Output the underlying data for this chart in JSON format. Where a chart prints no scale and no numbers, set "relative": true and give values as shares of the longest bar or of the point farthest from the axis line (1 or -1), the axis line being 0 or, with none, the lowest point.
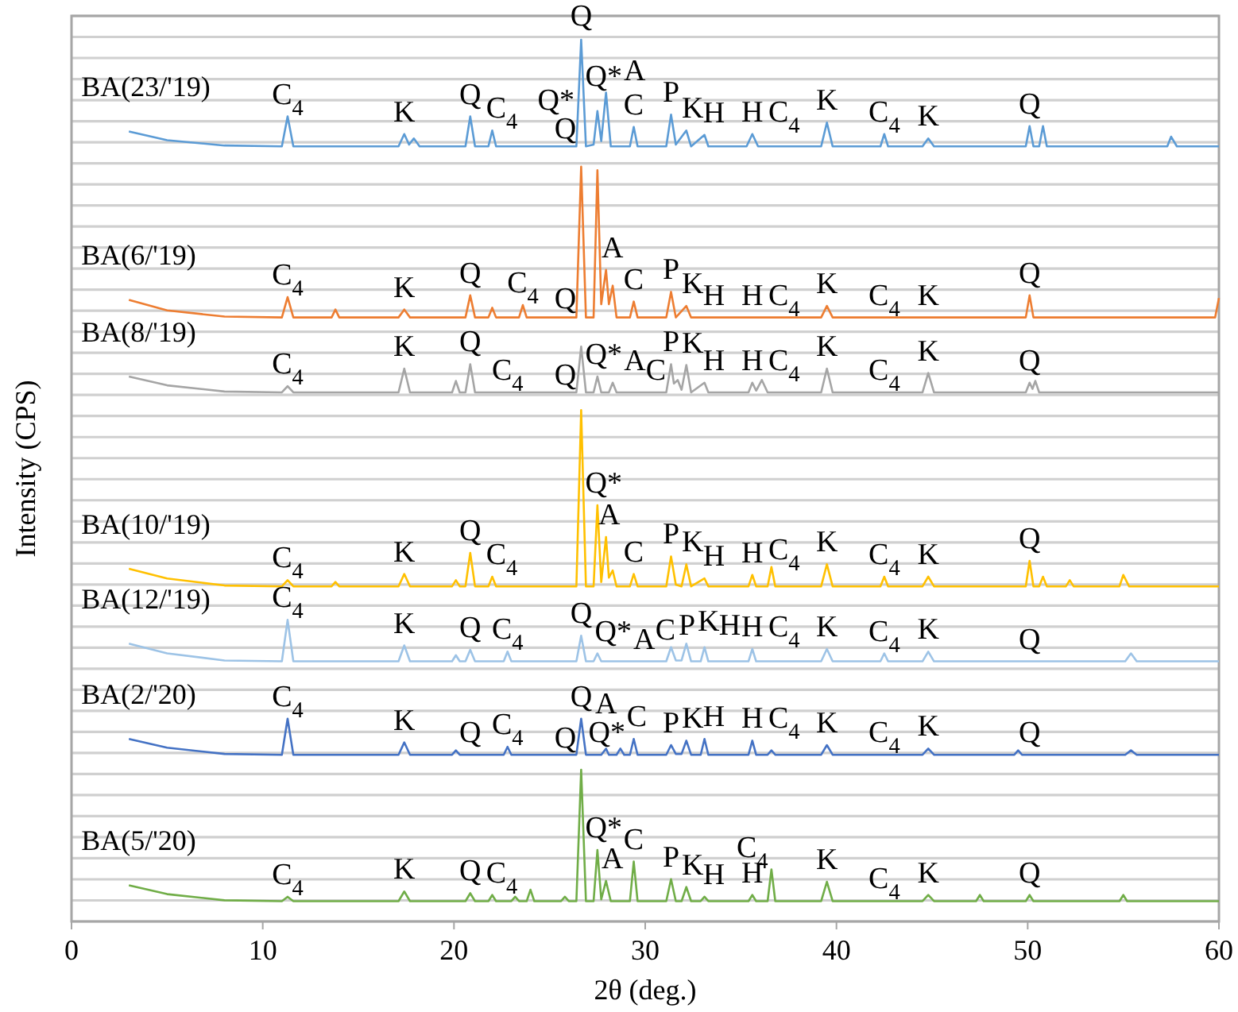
{
  "chart_data": {
    "type": "line",
    "relative": true,
    "xlabel": "2θ (deg.)",
    "ylabel": "Intensity (CPS)",
    "xlim": [
      0,
      60
    ],
    "xticks": [
      0,
      10,
      20,
      30,
      40,
      50,
      60
    ],
    "grid": "y",
    "legend": false,
    "tick_labels": "x",
    "marker": "none",
    "line_style": "solid",
    "series": [
      {
        "name": "BA(23/'19)",
        "color": "#5b9bd5",
        "x": [
          3,
          5,
          8,
          11.0,
          11.3,
          11.6,
          17.1,
          17.4,
          17.65,
          17.9,
          18.2,
          20.6,
          20.85,
          21.1,
          21.8,
          22,
          22.2,
          26.4,
          26.65,
          26.9,
          27.3,
          27.5,
          27.7,
          27.95,
          28.2,
          29.2,
          29.4,
          29.6,
          31.1,
          31.35,
          31.6,
          32.15,
          32.4,
          33.1,
          33.3,
          35.3,
          35.6,
          35.9,
          39.2,
          39.5,
          39.8,
          42.3,
          42.5,
          42.7,
          44.5,
          44.8,
          45.1,
          49.9,
          50.1,
          50.3,
          50.6,
          50.8,
          51.0,
          57.3,
          57.5,
          57.8,
          60
        ],
        "values": [
          0.896,
          0.886,
          0.88,
          0.879,
          0.913,
          0.879,
          0.879,
          0.893,
          0.881,
          0.888,
          0.879,
          0.879,
          0.913,
          0.879,
          0.879,
          0.897,
          0.879,
          0.879,
          1,
          0.879,
          0.881,
          0.919,
          0.885,
          0.94,
          0.879,
          0.879,
          0.901,
          0.879,
          0.879,
          0.915,
          0.881,
          0.897,
          0.879,
          0.892,
          0.879,
          0.879,
          0.893,
          0.879,
          0.879,
          0.906,
          0.879,
          0.879,
          0.893,
          0.879,
          0.879,
          0.888,
          0.879,
          0.879,
          0.902,
          0.879,
          0.879,
          0.902,
          0.879,
          0.879,
          0.89,
          0.879,
          0.879
        ]
      },
      {
        "name": "BA(6/'19)",
        "color": "#ed7d31",
        "x": [
          3,
          5,
          8,
          11.0,
          11.3,
          11.6,
          13.6,
          13.8,
          14.0,
          17.1,
          17.4,
          17.7,
          20.6,
          20.85,
          21.1,
          21.8,
          22,
          22.2,
          23.4,
          23.6,
          23.8,
          26.4,
          26.65,
          26.9,
          27.3,
          27.5,
          27.7,
          27.95,
          28.1,
          28.3,
          28.5,
          29.2,
          29.4,
          29.6,
          31.1,
          31.35,
          31.6,
          32.15,
          32.4,
          39.2,
          39.5,
          39.8,
          49.9,
          50.1,
          50.3,
          59.8,
          60
        ],
        "values": [
          0.705,
          0.693,
          0.686,
          0.685,
          0.708,
          0.685,
          0.685,
          0.694,
          0.685,
          0.685,
          0.694,
          0.685,
          0.685,
          0.71,
          0.685,
          0.685,
          0.696,
          0.685,
          0.685,
          0.699,
          0.685,
          0.685,
          0.856,
          0.685,
          0.685,
          0.852,
          0.7,
          0.739,
          0.7,
          0.721,
          0.685,
          0.685,
          0.703,
          0.685,
          0.685,
          0.714,
          0.685,
          0.698,
          0.685,
          0.685,
          0.698,
          0.685,
          0.685,
          0.71,
          0.685,
          0.685,
          0.707
        ]
      },
      {
        "name": "BA(8/'19)",
        "color": "#a5a5a5",
        "x": [
          3,
          5,
          8,
          11.0,
          11.3,
          11.6,
          17.1,
          17.4,
          17.7,
          19.9,
          20.1,
          20.3,
          20.6,
          20.85,
          21.1,
          26.4,
          26.65,
          26.9,
          27.3,
          27.5,
          27.7,
          28.1,
          28.3,
          28.5,
          31.1,
          31.35,
          31.5,
          31.7,
          31.9,
          32.15,
          32.4,
          33.1,
          33.3,
          35.4,
          35.6,
          35.8,
          36.1,
          36.4,
          39.2,
          39.5,
          39.8,
          44.5,
          44.8,
          45.1,
          49.9,
          50.1,
          50.25,
          50.4,
          50.6,
          60
        ],
        "values": [
          0.618,
          0.608,
          0.601,
          0.6,
          0.607,
          0.6,
          0.6,
          0.627,
          0.6,
          0.6,
          0.613,
          0.6,
          0.6,
          0.632,
          0.6,
          0.6,
          0.652,
          0.6,
          0.6,
          0.618,
          0.6,
          0.6,
          0.611,
          0.6,
          0.6,
          0.632,
          0.61,
          0.614,
          0.603,
          0.631,
          0.6,
          0.611,
          0.6,
          0.6,
          0.611,
          0.602,
          0.614,
          0.6,
          0.6,
          0.627,
          0.6,
          0.6,
          0.622,
          0.6,
          0.6,
          0.611,
          0.604,
          0.613,
          0.6,
          0.6
        ]
      },
      {
        "name": "BA(10/'19)",
        "color": "#ffc000",
        "x": [
          3,
          5,
          8,
          11.0,
          11.3,
          11.6,
          13.6,
          13.8,
          14.0,
          17.1,
          17.4,
          17.7,
          19.9,
          20.1,
          20.3,
          20.6,
          20.85,
          21.1,
          21.8,
          22,
          22.2,
          26.4,
          26.65,
          26.9,
          27.3,
          27.5,
          27.7,
          27.95,
          28.1,
          28.3,
          28.5,
          29.2,
          29.4,
          29.6,
          31.1,
          31.35,
          31.6,
          31.9,
          32.15,
          32.4,
          33.1,
          33.3,
          35.4,
          35.6,
          35.8,
          36.4,
          36.6,
          36.8,
          39.2,
          39.5,
          39.8,
          42.3,
          42.5,
          42.7,
          44.5,
          44.8,
          45.1,
          49.9,
          50.1,
          50.3,
          50.6,
          50.8,
          51.0,
          52.0,
          52.2,
          52.4,
          54.8,
          55,
          55.3,
          60
        ],
        "values": [
          0.4,
          0.389,
          0.381,
          0.38,
          0.387,
          0.38,
          0.38,
          0.385,
          0.38,
          0.38,
          0.394,
          0.38,
          0.38,
          0.387,
          0.38,
          0.38,
          0.418,
          0.38,
          0.38,
          0.391,
          0.38,
          0.38,
          0.58,
          0.38,
          0.38,
          0.472,
          0.385,
          0.436,
          0.39,
          0.398,
          0.38,
          0.38,
          0.394,
          0.38,
          0.38,
          0.414,
          0.382,
          0.38,
          0.405,
          0.38,
          0.389,
          0.38,
          0.38,
          0.393,
          0.38,
          0.38,
          0.402,
          0.38,
          0.38,
          0.405,
          0.38,
          0.38,
          0.391,
          0.38,
          0.38,
          0.391,
          0.38,
          0.38,
          0.409,
          0.38,
          0.38,
          0.391,
          0.38,
          0.38,
          0.387,
          0.38,
          0.38,
          0.393,
          0.38,
          0.38
        ]
      },
      {
        "name": "BA(12/'19)",
        "color": "#9dc3e6",
        "x": [
          3,
          5,
          8,
          11.0,
          11.3,
          11.6,
          17.1,
          17.4,
          17.7,
          19.9,
          20.1,
          20.3,
          20.6,
          20.85,
          21.1,
          22.6,
          22.8,
          23.0,
          26.4,
          26.65,
          26.9,
          27.3,
          27.5,
          27.7,
          31.1,
          31.35,
          31.6,
          31.9,
          32.15,
          32.4,
          32.9,
          33.1,
          33.3,
          35.4,
          35.6,
          35.8,
          39.2,
          39.5,
          39.8,
          42.3,
          42.5,
          42.7,
          44.5,
          44.8,
          45.1,
          55.1,
          55.4,
          55.7,
          60
        ],
        "values": [
          0.315,
          0.304,
          0.296,
          0.295,
          0.342,
          0.295,
          0.295,
          0.313,
          0.295,
          0.295,
          0.302,
          0.295,
          0.295,
          0.308,
          0.295,
          0.295,
          0.306,
          0.295,
          0.295,
          0.324,
          0.295,
          0.295,
          0.304,
          0.295,
          0.295,
          0.311,
          0.296,
          0.296,
          0.315,
          0.295,
          0.295,
          0.311,
          0.295,
          0.295,
          0.309,
          0.295,
          0.295,
          0.309,
          0.295,
          0.295,
          0.304,
          0.295,
          0.295,
          0.306,
          0.295,
          0.295,
          0.304,
          0.295,
          0.295
        ]
      },
      {
        "name": "BA(2/'20)",
        "color": "#4472c4",
        "x": [
          3,
          5,
          8,
          11.0,
          11.3,
          11.6,
          17.1,
          17.4,
          17.7,
          19.9,
          20.1,
          20.3,
          22.6,
          22.8,
          23.0,
          26.4,
          26.65,
          26.9,
          27.7,
          27.95,
          28.1,
          28.5,
          28.7,
          28.9,
          29.2,
          29.4,
          29.6,
          31.1,
          31.35,
          31.6,
          31.9,
          32.15,
          32.4,
          32.9,
          33.1,
          33.3,
          35.4,
          35.6,
          35.8,
          36.4,
          36.6,
          36.8,
          39.2,
          39.5,
          39.8,
          44.5,
          44.8,
          45.1,
          49.3,
          49.5,
          49.7,
          55.1,
          55.4,
          55.7,
          60
        ],
        "values": [
          0.207,
          0.197,
          0.19,
          0.189,
          0.23,
          0.189,
          0.189,
          0.203,
          0.189,
          0.189,
          0.194,
          0.189,
          0.189,
          0.198,
          0.189,
          0.189,
          0.23,
          0.189,
          0.189,
          0.196,
          0.189,
          0.189,
          0.196,
          0.189,
          0.189,
          0.207,
          0.189,
          0.189,
          0.2,
          0.19,
          0.19,
          0.205,
          0.189,
          0.189,
          0.207,
          0.189,
          0.189,
          0.205,
          0.189,
          0.189,
          0.194,
          0.189,
          0.189,
          0.2,
          0.189,
          0.189,
          0.196,
          0.189,
          0.189,
          0.194,
          0.189,
          0.189,
          0.194,
          0.189,
          0.189
        ]
      },
      {
        "name": "BA(5/'20)",
        "color": "#70ad47",
        "x": [
          3,
          5,
          8,
          11.0,
          11.3,
          11.6,
          17.1,
          17.4,
          17.7,
          20.6,
          20.85,
          21.1,
          21.8,
          22,
          22.2,
          23.0,
          23.2,
          23.4,
          23.8,
          24,
          24.2,
          25.6,
          25.8,
          26.0,
          26.4,
          26.65,
          26.9,
          27.3,
          27.5,
          27.7,
          27.95,
          28.2,
          29.2,
          29.4,
          29.6,
          31.1,
          31.35,
          31.6,
          31.9,
          32.15,
          32.4,
          32.9,
          33.1,
          33.3,
          35.4,
          35.6,
          35.8,
          36.4,
          36.6,
          36.8,
          39.2,
          39.5,
          39.8,
          44.5,
          44.8,
          45.1,
          47.3,
          47.5,
          47.7,
          49.9,
          50.1,
          50.3,
          54.8,
          55,
          55.2,
          60
        ],
        "values": [
          0.041,
          0.031,
          0.024,
          0.023,
          0.028,
          0.023,
          0.023,
          0.034,
          0.023,
          0.023,
          0.032,
          0.023,
          0.023,
          0.03,
          0.023,
          0.023,
          0.028,
          0.023,
          0.023,
          0.036,
          0.023,
          0.023,
          0.028,
          0.023,
          0.023,
          0.172,
          0.023,
          0.023,
          0.081,
          0.025,
          0.046,
          0.023,
          0.023,
          0.068,
          0.023,
          0.023,
          0.048,
          0.023,
          0.023,
          0.039,
          0.023,
          0.023,
          0.028,
          0.023,
          0.023,
          0.03,
          0.023,
          0.023,
          0.059,
          0.023,
          0.023,
          0.045,
          0.023,
          0.023,
          0.03,
          0.023,
          0.023,
          0.03,
          0.023,
          0.023,
          0.03,
          0.023,
          0.023,
          0.03,
          0.023,
          0.023
        ]
      }
    ],
    "annotations": [
      {
        "text": "C$_{4}$",
        "x": 11.3,
        "y": 0.913
      },
      {
        "text": "K",
        "x": 17.4,
        "y": 0.893
      },
      {
        "text": "Q",
        "x": 20.85,
        "y": 0.913
      },
      {
        "text": "C$_{4}$",
        "x": 22,
        "y": 0.897
      },
      {
        "text": "Q",
        "x": 26.65,
        "y": 1
      },
      {
        "text": "Q*",
        "x": 27.5,
        "y": 0.919
      },
      {
        "text": "A",
        "x": 27.95,
        "y": 0.94
      },
      {
        "text": "C",
        "x": 29.4,
        "y": 0.901
      },
      {
        "text": "P",
        "x": 31.35,
        "y": 0.915
      },
      {
        "text": "K",
        "x": 32.15,
        "y": 0.897
      },
      {
        "text": "H",
        "x": 33.1,
        "y": 0.892
      },
      {
        "text": "H",
        "x": 35.6,
        "y": 0.893
      },
      {
        "text": "C$_{4}$",
        "x": 35.6,
        "y": 0.893
      },
      {
        "text": "K",
        "x": 39.5,
        "y": 0.906
      },
      {
        "text": "C$_{4}$",
        "x": 42.5,
        "y": 0.893
      },
      {
        "text": "K",
        "x": 44.8,
        "y": 0.888
      },
      {
        "text": "Q",
        "x": 50.1,
        "y": 0.902
      },
      {
        "text": "C$_{4}$",
        "x": 11.3,
        "y": 0.708
      },
      {
        "text": "K",
        "x": 17.4,
        "y": 0.694
      },
      {
        "text": "Q",
        "x": 20.85,
        "y": 0.71
      },
      {
        "text": "C$_{4}$",
        "x": 23.6,
        "y": 0.699
      },
      {
        "text": "Q",
        "x": 26.65,
        "y": 0.856
      },
      {
        "text": "Q*",
        "x": 27.5,
        "y": 0.852
      },
      {
        "text": "A",
        "x": 27.95,
        "y": 0.739
      },
      {
        "text": "C",
        "x": 29.4,
        "y": 0.703
      },
      {
        "text": "P",
        "x": 31.35,
        "y": 0.714
      },
      {
        "text": "K",
        "x": 32.15,
        "y": 0.698
      },
      {
        "text": "H",
        "x": 33.1,
        "y": 0.685
      },
      {
        "text": "H",
        "x": 35.6,
        "y": 0.685
      },
      {
        "text": "C$_{4}$",
        "x": 35.6,
        "y": 0.685
      },
      {
        "text": "K",
        "x": 39.5,
        "y": 0.698
      },
      {
        "text": "C$_{4}$",
        "x": 42.5,
        "y": 0.685
      },
      {
        "text": "K",
        "x": 44.8,
        "y": 0.685
      },
      {
        "text": "Q",
        "x": 50.1,
        "y": 0.71
      },
      {
        "text": "C$_{4}$",
        "x": 11.3,
        "y": 0.607
      },
      {
        "text": "K",
        "x": 17.4,
        "y": 0.627
      },
      {
        "text": "Q",
        "x": 20.85,
        "y": 0.632
      },
      {
        "text": "C$_{4}$",
        "x": 22.8,
        "y": 0.6
      },
      {
        "text": "Q",
        "x": 26.65,
        "y": 0.652
      },
      {
        "text": "Q*",
        "x": 27.5,
        "y": 0.618
      },
      {
        "text": "A",
        "x": 28.3,
        "y": 0.611
      },
      {
        "text": "C",
        "x": 29.4,
        "y": 0.6
      },
      {
        "text": "P",
        "x": 31.35,
        "y": 0.632
      },
      {
        "text": "K",
        "x": 32.15,
        "y": 0.631
      },
      {
        "text": "H",
        "x": 33.1,
        "y": 0.611
      },
      {
        "text": "H",
        "x": 35.6,
        "y": 0.611
      },
      {
        "text": "C$_{4}$",
        "x": 35.6,
        "y": 0.611
      },
      {
        "text": "K",
        "x": 39.5,
        "y": 0.627
      },
      {
        "text": "C$_{4}$",
        "x": 42.5,
        "y": 0.6
      },
      {
        "text": "K",
        "x": 44.8,
        "y": 0.622
      },
      {
        "text": "Q",
        "x": 50.1,
        "y": 0.611
      },
      {
        "text": "C$_{4}$",
        "x": 11.3,
        "y": 0.387
      },
      {
        "text": "K",
        "x": 17.4,
        "y": 0.394
      },
      {
        "text": "Q",
        "x": 20.85,
        "y": 0.418
      },
      {
        "text": "C$_{4}$",
        "x": 22,
        "y": 0.391
      },
      {
        "text": "Q",
        "x": 26.65,
        "y": 0.58
      },
      {
        "text": "Q*",
        "x": 27.5,
        "y": 0.472
      },
      {
        "text": "A",
        "x": 27.95,
        "y": 0.436
      },
      {
        "text": "C",
        "x": 29.4,
        "y": 0.394
      },
      {
        "text": "P",
        "x": 31.35,
        "y": 0.414
      },
      {
        "text": "K",
        "x": 32.15,
        "y": 0.405
      },
      {
        "text": "H",
        "x": 33.1,
        "y": 0.389
      },
      {
        "text": "H",
        "x": 35.6,
        "y": 0.393
      },
      {
        "text": "C$_{4}$",
        "x": 35.6,
        "y": 0.393
      },
      {
        "text": "K",
        "x": 39.5,
        "y": 0.405
      },
      {
        "text": "C$_{4}$",
        "x": 42.5,
        "y": 0.391
      },
      {
        "text": "K",
        "x": 44.8,
        "y": 0.391
      },
      {
        "text": "Q",
        "x": 50.1,
        "y": 0.409
      },
      {
        "text": "C$_{4}$",
        "x": 11.3,
        "y": 0.342
      },
      {
        "text": "K",
        "x": 17.4,
        "y": 0.313
      },
      {
        "text": "Q",
        "x": 20.85,
        "y": 0.308
      },
      {
        "text": "C$_{4}$",
        "x": 22.8,
        "y": 0.306
      },
      {
        "text": "Q",
        "x": 26.65,
        "y": 0.324
      },
      {
        "text": "Q*",
        "x": 27.5,
        "y": 0.304
      },
      {
        "text": "A",
        "x": 27.95,
        "y": 0.295
      },
      {
        "text": "C",
        "x": 29.4,
        "y": 0.295
      },
      {
        "text": "P",
        "x": 31.35,
        "y": 0.311
      },
      {
        "text": "K",
        "x": 32.15,
        "y": 0.315
      },
      {
        "text": "H",
        "x": 33.1,
        "y": 0.311
      },
      {
        "text": "H",
        "x": 35.6,
        "y": 0.309
      },
      {
        "text": "C$_{4}$",
        "x": 35.6,
        "y": 0.309
      },
      {
        "text": "K",
        "x": 39.5,
        "y": 0.309
      },
      {
        "text": "C$_{4}$",
        "x": 42.5,
        "y": 0.304
      },
      {
        "text": "K",
        "x": 44.8,
        "y": 0.306
      },
      {
        "text": "Q",
        "x": 50.1,
        "y": 0.295
      },
      {
        "text": "C$_{4}$",
        "x": 11.3,
        "y": 0.23
      },
      {
        "text": "K",
        "x": 17.4,
        "y": 0.203
      },
      {
        "text": "Q",
        "x": 20.85,
        "y": 0.189
      },
      {
        "text": "C$_{4}$",
        "x": 22.8,
        "y": 0.198
      },
      {
        "text": "Q",
        "x": 26.65,
        "y": 0.23
      },
      {
        "text": "Q*",
        "x": 27.5,
        "y": 0.189
      },
      {
        "text": "A",
        "x": 27.95,
        "y": 0.196
      },
      {
        "text": "C",
        "x": 29.4,
        "y": 0.207
      },
      {
        "text": "P",
        "x": 31.35,
        "y": 0.2
      },
      {
        "text": "K",
        "x": 32.15,
        "y": 0.205
      },
      {
        "text": "H",
        "x": 33.1,
        "y": 0.207
      },
      {
        "text": "H",
        "x": 35.6,
        "y": 0.205
      },
      {
        "text": "C$_{4}$",
        "x": 35.6,
        "y": 0.205
      },
      {
        "text": "K",
        "x": 39.5,
        "y": 0.2
      },
      {
        "text": "C$_{4}$",
        "x": 42.5,
        "y": 0.189
      },
      {
        "text": "K",
        "x": 44.8,
        "y": 0.196
      },
      {
        "text": "Q",
        "x": 50.1,
        "y": 0.189
      },
      {
        "text": "C$_{4}$",
        "x": 11.3,
        "y": 0.028
      },
      {
        "text": "K",
        "x": 17.4,
        "y": 0.034
      },
      {
        "text": "Q",
        "x": 20.85,
        "y": 0.032
      },
      {
        "text": "C$_{4}$",
        "x": 22,
        "y": 0.03
      },
      {
        "text": "Q",
        "x": 26.65,
        "y": 0.172
      },
      {
        "text": "Q*",
        "x": 27.5,
        "y": 0.081
      },
      {
        "text": "A",
        "x": 27.95,
        "y": 0.046
      },
      {
        "text": "C",
        "x": 29.4,
        "y": 0.068
      },
      {
        "text": "P",
        "x": 31.35,
        "y": 0.048
      },
      {
        "text": "K",
        "x": 32.15,
        "y": 0.039
      },
      {
        "text": "H",
        "x": 33.1,
        "y": 0.028
      },
      {
        "text": "H",
        "x": 35.6,
        "y": 0.03
      },
      {
        "text": "C$_{4}$",
        "x": 35.6,
        "y": 0.03
      },
      {
        "text": "K",
        "x": 39.5,
        "y": 0.045
      },
      {
        "text": "C$_{4}$",
        "x": 42.5,
        "y": 0.023
      },
      {
        "text": "K",
        "x": 44.8,
        "y": 0.03
      },
      {
        "text": "Q",
        "x": 50.1,
        "y": 0.03
      }
    ]
  }
}
